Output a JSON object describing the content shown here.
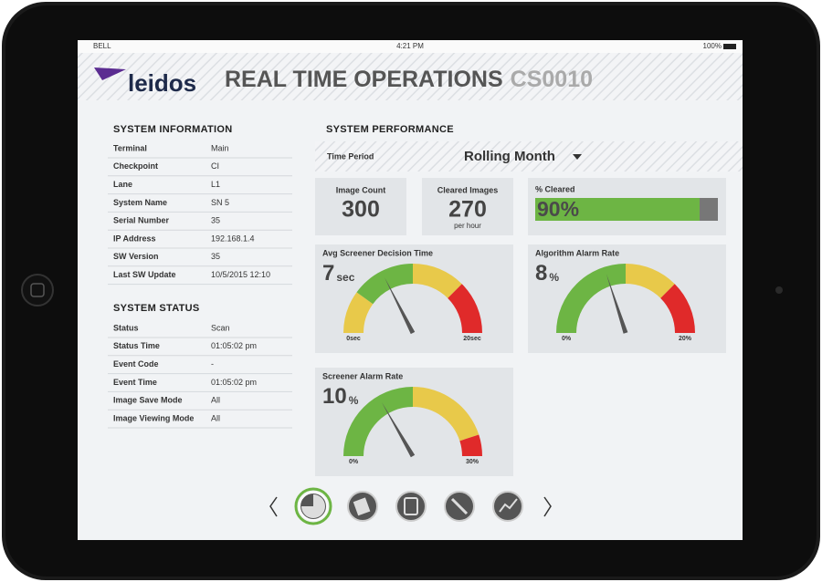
{
  "status_bar": {
    "carrier": "BELL",
    "time": "4:21 PM",
    "battery": "100%"
  },
  "header": {
    "logo": "leidos",
    "title": "REAL TIME OPERATIONS",
    "code": "CS0010"
  },
  "system_information": {
    "title": "SYSTEM INFORMATION",
    "rows": [
      [
        "Terminal",
        "Main"
      ],
      [
        "Checkpoint",
        "CI"
      ],
      [
        "Lane",
        "L1"
      ],
      [
        "System Name",
        "SN 5"
      ],
      [
        "Serial Number",
        "35"
      ],
      [
        "IP Address",
        "192.168.1.4"
      ],
      [
        "SW Version",
        "35"
      ],
      [
        "Last SW Update",
        "10/5/2015 12:10"
      ]
    ]
  },
  "system_status": {
    "title": "SYSTEM STATUS",
    "rows": [
      [
        "Status",
        "Scan"
      ],
      [
        "Status Time",
        "01:05:02 pm"
      ],
      [
        "Event Code",
        "-"
      ],
      [
        "Event Time",
        "01:05:02 pm"
      ],
      [
        "Image Save Mode",
        "All"
      ],
      [
        "Image Viewing Mode",
        "All"
      ]
    ]
  },
  "system_performance": {
    "title": "SYSTEM PERFORMANCE",
    "time_period_label": "Time Period",
    "time_period": "Rolling Month",
    "tiles": [
      {
        "label": "Image Count",
        "value": 300
      },
      {
        "label": "Cleared Images",
        "value": 270,
        "unit": "per hour"
      }
    ],
    "percent_cleared": {
      "label": "% Cleared",
      "value": 90,
      "value_label": "90%",
      "max": 100,
      "color": "#6db544",
      "track_color": "#777777"
    },
    "gauges": [
      {
        "title": "Avg Screener Decision Time",
        "value": 7,
        "unit": "sec",
        "range": [
          {
            "value": 0,
            "label": "0sec"
          },
          {
            "value": 20,
            "label": "20sec"
          }
        ],
        "zones": [
          {
            "to": 4,
            "color": "#e8c94a"
          },
          {
            "to": 10,
            "color": "#6db544"
          },
          {
            "to": 15,
            "color": "#e8c94a"
          },
          {
            "to": 20,
            "color": "#e02a2a"
          }
        ]
      },
      {
        "title": "Algorithm Alarm Rate",
        "value": 8,
        "unit": "%",
        "range": [
          {
            "value": 0,
            "label": "0%"
          },
          {
            "value": 20,
            "label": "20%"
          }
        ],
        "zones": [
          {
            "to": 10,
            "color": "#6db544"
          },
          {
            "to": 15,
            "color": "#e8c94a"
          },
          {
            "to": 20,
            "color": "#e02a2a"
          }
        ]
      },
      {
        "title": "Screener Alarm Rate",
        "value": 10,
        "unit": "%",
        "range": [
          {
            "value": 0,
            "label": "0%"
          },
          {
            "value": 30,
            "label": "30%"
          }
        ],
        "zones": [
          {
            "to": 15,
            "color": "#6db544"
          },
          {
            "to": 27,
            "color": "#e8c94a"
          },
          {
            "to": 30,
            "color": "#e02a2a"
          }
        ]
      }
    ]
  }
}
